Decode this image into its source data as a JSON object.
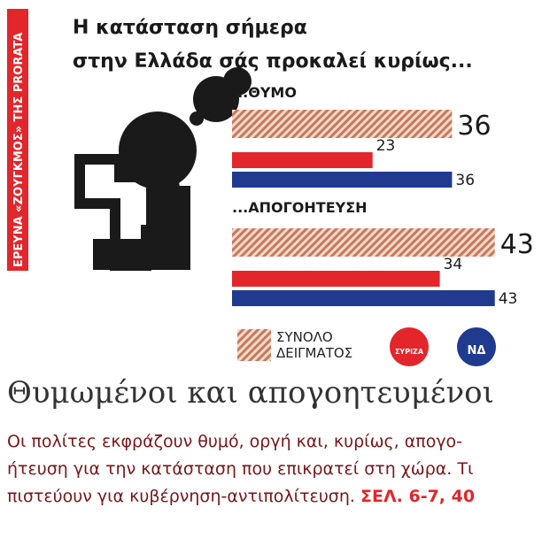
{
  "side_label": "ΕΡΕΥΝΑ «ΖΟΥΓΚΜΟΣ» ΤΗΣ PRORATA",
  "chart_data": {
    "type": "bar",
    "title_lines": [
      "Η κατάσταση σήμερα",
      "στην Ελλάδα σάς προκαλεί κυρίως..."
    ],
    "categories": [
      "...ΘΥΜΟ",
      "...ΑΠΟΓΟΗΤΕΥΣΗ"
    ],
    "series": [
      {
        "name": "ΣΥΝΟΛΟ ΔΕΙΓΜΑΤΟΣ",
        "color": "#c8785a",
        "hatched": true,
        "values": [
          36,
          43
        ]
      },
      {
        "name": "ΣΥΡΙΖΑ",
        "color": "#e3262b",
        "values": [
          23,
          34
        ]
      },
      {
        "name": "ΝΔ",
        "color": "#1f3a8f",
        "values": [
          36,
          43
        ]
      }
    ]
  },
  "headline": "Θυμωμένοι και απογοητευμένοι",
  "body_lines": [
    "Οι πολίτες εκφράζουν θυμό, οργή και, κυρίως, απογο-",
    "ήτευση για την κατάσταση που επικρατεί στη χώρα. Τι",
    "πιστεύουν για κυβέρνηση-αντιπολίτευση."
  ],
  "reference": "ΣΕΛ. 6-7, 40"
}
